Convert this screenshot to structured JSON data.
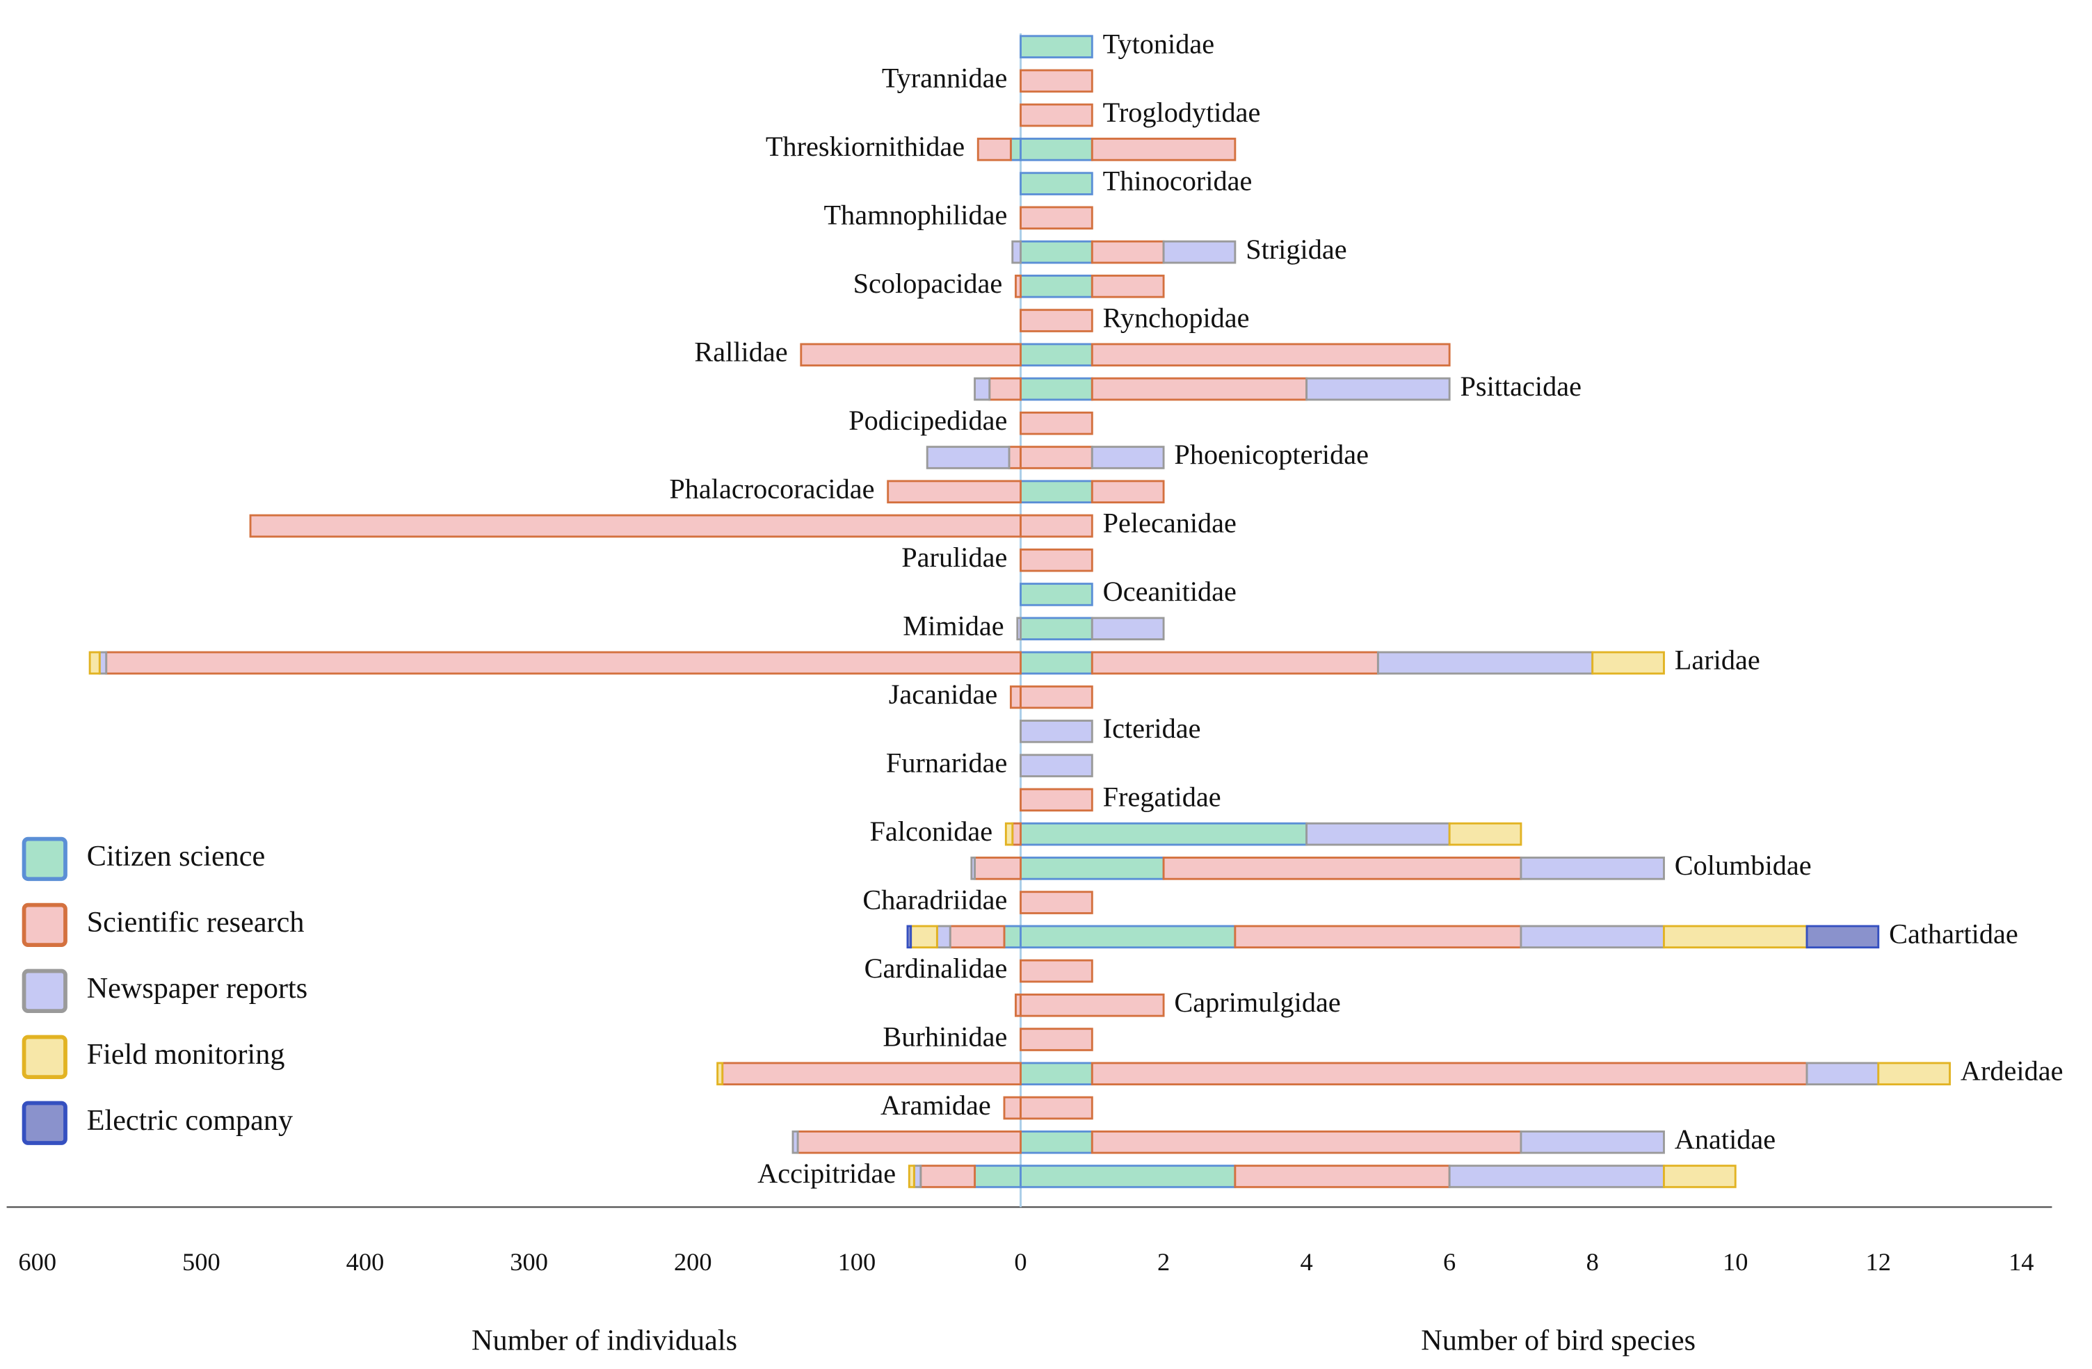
{
  "chart_data": {
    "type": "butterfly-bar",
    "categories": [
      "Tytonidae",
      "Tyrannidae",
      "Troglodytidae",
      "Threskiornithidae",
      "Thinocoridae",
      "Thamnophilidae",
      "Strigidae",
      "Scolopacidae",
      "Rynchopidae",
      "Rallidae",
      "Psittacidae",
      "Podicipedidae",
      "Phoenicopteridae",
      "Phalacrocoracidae",
      "Pelecanidae",
      "Parulidae",
      "Oceanitidae",
      "Mimidae",
      "Laridae",
      "Jacanidae",
      "Icteridae",
      "Furnaridae",
      "Fregatidae",
      "Falconidae",
      "Columbidae",
      "Charadriidae",
      "Cathartidae",
      "Cardinalidae",
      "Caprimulgidae",
      "Burhinidae",
      "Ardeidae",
      "Aramidae",
      "Anatidae",
      "Accipitridae"
    ],
    "left_axis": {
      "label": "Number of individuals",
      "xlim": [
        0,
        600
      ],
      "xticks": [
        100,
        200,
        300,
        400,
        500,
        600
      ]
    },
    "right_axis": {
      "label": "Number of bird species",
      "xlim": [
        0,
        14
      ],
      "xticks": [
        0,
        2,
        4,
        6,
        8,
        10,
        12,
        14
      ]
    },
    "series": [
      {
        "name": "Citizen science",
        "color": "#a8e2c9",
        "border": "#5b8fd6",
        "individuals": [
          null,
          null,
          null,
          6,
          null,
          null,
          null,
          null,
          null,
          null,
          null,
          null,
          null,
          null,
          null,
          null,
          null,
          null,
          null,
          null,
          null,
          null,
          null,
          null,
          null,
          null,
          10,
          null,
          null,
          null,
          null,
          null,
          null,
          28
        ],
        "species": [
          1,
          null,
          null,
          1,
          1,
          null,
          1,
          1,
          null,
          1,
          1,
          null,
          null,
          1,
          null,
          null,
          1,
          1,
          1,
          null,
          null,
          null,
          null,
          4,
          2,
          null,
          3,
          null,
          null,
          null,
          1,
          null,
          1,
          3
        ]
      },
      {
        "name": "Scientific research",
        "color": "#f5c6c6",
        "border": "#d4713f",
        "individuals": [
          null,
          null,
          null,
          20,
          null,
          null,
          null,
          3,
          null,
          134,
          19,
          null,
          7,
          81,
          470,
          null,
          null,
          null,
          558,
          6,
          null,
          null,
          null,
          5,
          28,
          null,
          33,
          null,
          3,
          null,
          182,
          10,
          136,
          33
        ],
        "species": [
          null,
          1,
          1,
          2,
          null,
          1,
          1,
          1,
          1,
          5,
          3,
          1,
          1,
          1,
          1,
          1,
          null,
          null,
          4,
          1,
          null,
          null,
          1,
          null,
          5,
          1,
          4,
          1,
          2,
          1,
          10,
          1,
          6,
          3
        ]
      },
      {
        "name": "Newspaper reports",
        "color": "#c6c9f4",
        "border": "#9a9a9a",
        "individuals": [
          null,
          null,
          null,
          null,
          null,
          null,
          5,
          null,
          null,
          null,
          9,
          null,
          50,
          null,
          null,
          null,
          null,
          2,
          4,
          null,
          null,
          null,
          null,
          null,
          2,
          null,
          8,
          null,
          null,
          null,
          null,
          null,
          3,
          4
        ],
        "species": [
          null,
          null,
          null,
          null,
          null,
          null,
          1,
          null,
          null,
          null,
          2,
          null,
          1,
          null,
          null,
          null,
          null,
          1,
          3,
          null,
          1,
          1,
          null,
          2,
          2,
          null,
          2,
          null,
          null,
          null,
          1,
          null,
          2,
          3
        ]
      },
      {
        "name": "Field monitoring",
        "color": "#f7e7a8",
        "border": "#e2b323",
        "individuals": [
          null,
          null,
          null,
          null,
          null,
          null,
          null,
          null,
          null,
          null,
          null,
          null,
          null,
          null,
          null,
          null,
          null,
          null,
          6,
          null,
          null,
          null,
          null,
          4,
          null,
          null,
          16,
          null,
          null,
          null,
          3,
          null,
          null,
          3
        ],
        "species": [
          null,
          null,
          null,
          null,
          null,
          null,
          null,
          null,
          null,
          null,
          null,
          null,
          null,
          null,
          null,
          null,
          null,
          null,
          1,
          null,
          null,
          null,
          null,
          1,
          null,
          null,
          2,
          null,
          null,
          null,
          1,
          null,
          null,
          1
        ]
      },
      {
        "name": "Electric company",
        "color": "#8a92cc",
        "border": "#3550c0",
        "individuals": [
          null,
          null,
          null,
          null,
          null,
          null,
          null,
          null,
          null,
          null,
          null,
          null,
          null,
          null,
          null,
          null,
          null,
          null,
          null,
          null,
          null,
          null,
          null,
          null,
          null,
          null,
          2,
          null,
          null,
          null,
          null,
          null,
          null,
          null
        ],
        "species": [
          null,
          null,
          null,
          null,
          null,
          null,
          null,
          null,
          null,
          null,
          null,
          null,
          null,
          null,
          null,
          null,
          null,
          null,
          null,
          null,
          null,
          null,
          null,
          null,
          null,
          null,
          1,
          null,
          null,
          null,
          null,
          null,
          null,
          null
        ]
      }
    ]
  }
}
